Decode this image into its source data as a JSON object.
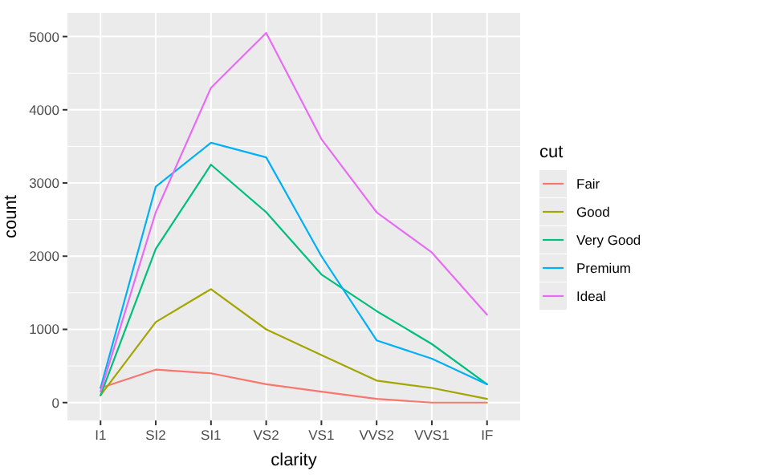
{
  "chart_data": {
    "type": "line",
    "xlabel": "clarity",
    "ylabel": "count",
    "legend_title": "cut",
    "legend": "right",
    "grid": true,
    "categories": [
      "I1",
      "SI2",
      "SI1",
      "VS2",
      "VS1",
      "VVS2",
      "VVS1",
      "IF"
    ],
    "ylim": [
      -244,
      5324
    ],
    "yticks": [
      0,
      1000,
      2000,
      3000,
      4000,
      5000
    ],
    "series": [
      {
        "name": "Fair",
        "color": "#f8766d",
        "values": [
          200,
          450,
          400,
          250,
          150,
          50,
          0,
          0
        ]
      },
      {
        "name": "Good",
        "color": "#a3a500",
        "values": [
          100,
          1100,
          1550,
          1000,
          650,
          300,
          200,
          50
        ]
      },
      {
        "name": "Very Good",
        "color": "#00bf7d",
        "values": [
          100,
          2100,
          3250,
          2600,
          1750,
          1250,
          800,
          250
        ]
      },
      {
        "name": "Premium",
        "color": "#00b0f6",
        "values": [
          200,
          2950,
          3550,
          3350,
          2000,
          850,
          600,
          250
        ]
      },
      {
        "name": "Ideal",
        "color": "#e76bf3",
        "values": [
          150,
          2600,
          4300,
          5050,
          3600,
          2600,
          2050,
          1200
        ]
      }
    ]
  }
}
